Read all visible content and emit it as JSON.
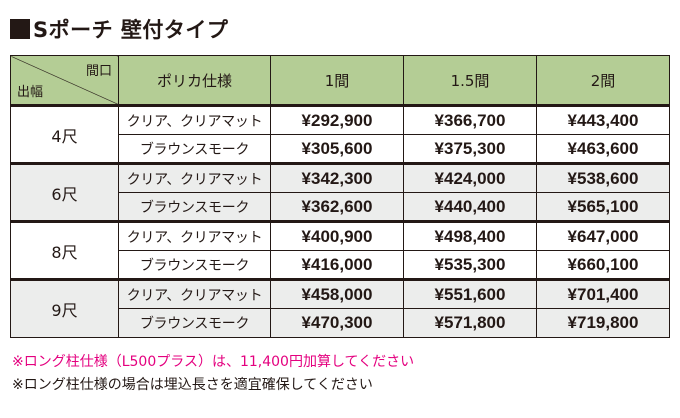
{
  "title": "Sポーチ 壁付タイプ",
  "header": {
    "corner_top": "間口",
    "corner_bottom": "出幅",
    "spec": "ポリカ仕様",
    "cols": [
      "1間",
      "1.5間",
      "2間"
    ]
  },
  "rows": [
    {
      "size": "4尺",
      "items": [
        {
          "spec": "クリア、クリアマット",
          "prices": [
            "¥292,900",
            "¥366,700",
            "¥443,400"
          ]
        },
        {
          "spec": "ブラウンスモーク",
          "prices": [
            "¥305,600",
            "¥375,300",
            "¥463,600"
          ]
        }
      ]
    },
    {
      "size": "6尺",
      "items": [
        {
          "spec": "クリア、クリアマット",
          "prices": [
            "¥342,300",
            "¥424,000",
            "¥538,600"
          ]
        },
        {
          "spec": "ブラウンスモーク",
          "prices": [
            "¥362,600",
            "¥440,400",
            "¥565,100"
          ]
        }
      ]
    },
    {
      "size": "8尺",
      "items": [
        {
          "spec": "クリア、クリアマット",
          "prices": [
            "¥400,900",
            "¥498,400",
            "¥647,000"
          ]
        },
        {
          "spec": "ブラウンスモーク",
          "prices": [
            "¥416,000",
            "¥535,300",
            "¥660,100"
          ]
        }
      ]
    },
    {
      "size": "9尺",
      "items": [
        {
          "spec": "クリア、クリアマット",
          "prices": [
            "¥458,000",
            "¥551,600",
            "¥701,400"
          ]
        },
        {
          "spec": "ブラウンスモーク",
          "prices": [
            "¥470,300",
            "¥571,800",
            "¥719,800"
          ]
        }
      ]
    }
  ],
  "notes": [
    "※ロング柱仕様（L500プラス）は、11,400円加算してください",
    "※ロング柱仕様の場合は埋込長さを適宜確保してください"
  ],
  "colors": {
    "header_bg": "#b4cd95",
    "grey_group_bg": "#ecedec",
    "note_accent": "#e4007f"
  }
}
